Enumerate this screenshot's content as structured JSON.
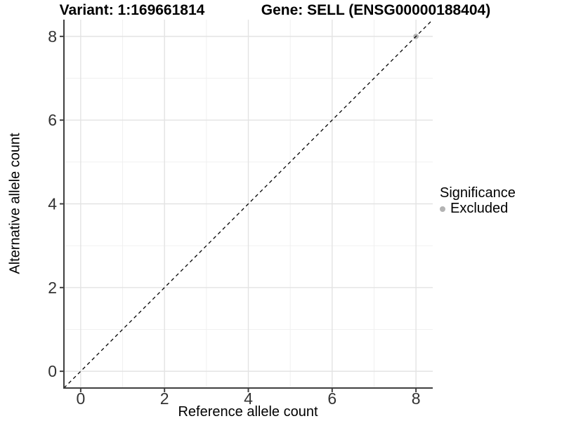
{
  "title": {
    "variant": "Variant: 1:169661814",
    "gene": "Gene: SELL (ENSG00000188404)"
  },
  "legend": {
    "title": "Significance",
    "items": [
      {
        "label": "Excluded",
        "color": "#b3b3b3"
      }
    ]
  },
  "chart_data": {
    "type": "scatter",
    "titles": [
      "Variant: 1:169661814",
      "Gene: SELL (ENSG00000188404)"
    ],
    "xlabel": "Reference allele count",
    "ylabel": "Alternative allele count",
    "xlim": [
      -0.4,
      8.4
    ],
    "ylim": [
      -0.4,
      8.4
    ],
    "x_major_ticks": [
      0,
      2,
      4,
      6,
      8
    ],
    "y_major_ticks": [
      0,
      2,
      4,
      6,
      8
    ],
    "x_minor_ticks": [
      1,
      3,
      5,
      7
    ],
    "y_minor_ticks": [
      1,
      3,
      5,
      7
    ],
    "grid": "major+minor",
    "legend_position": "right",
    "series": [
      {
        "name": "Excluded",
        "color": "#b3b3b3",
        "points": [
          [
            8,
            8
          ]
        ]
      }
    ],
    "reference_line": {
      "style": "dashed",
      "slope": 1,
      "intercept": 0,
      "color": "#000000"
    },
    "colors": {
      "grid_major": "#e3e3e3",
      "grid_minor": "#f0f0f0",
      "axis_line": "#404040",
      "tick_text": "#333333",
      "point": "#b3b3b3"
    }
  }
}
